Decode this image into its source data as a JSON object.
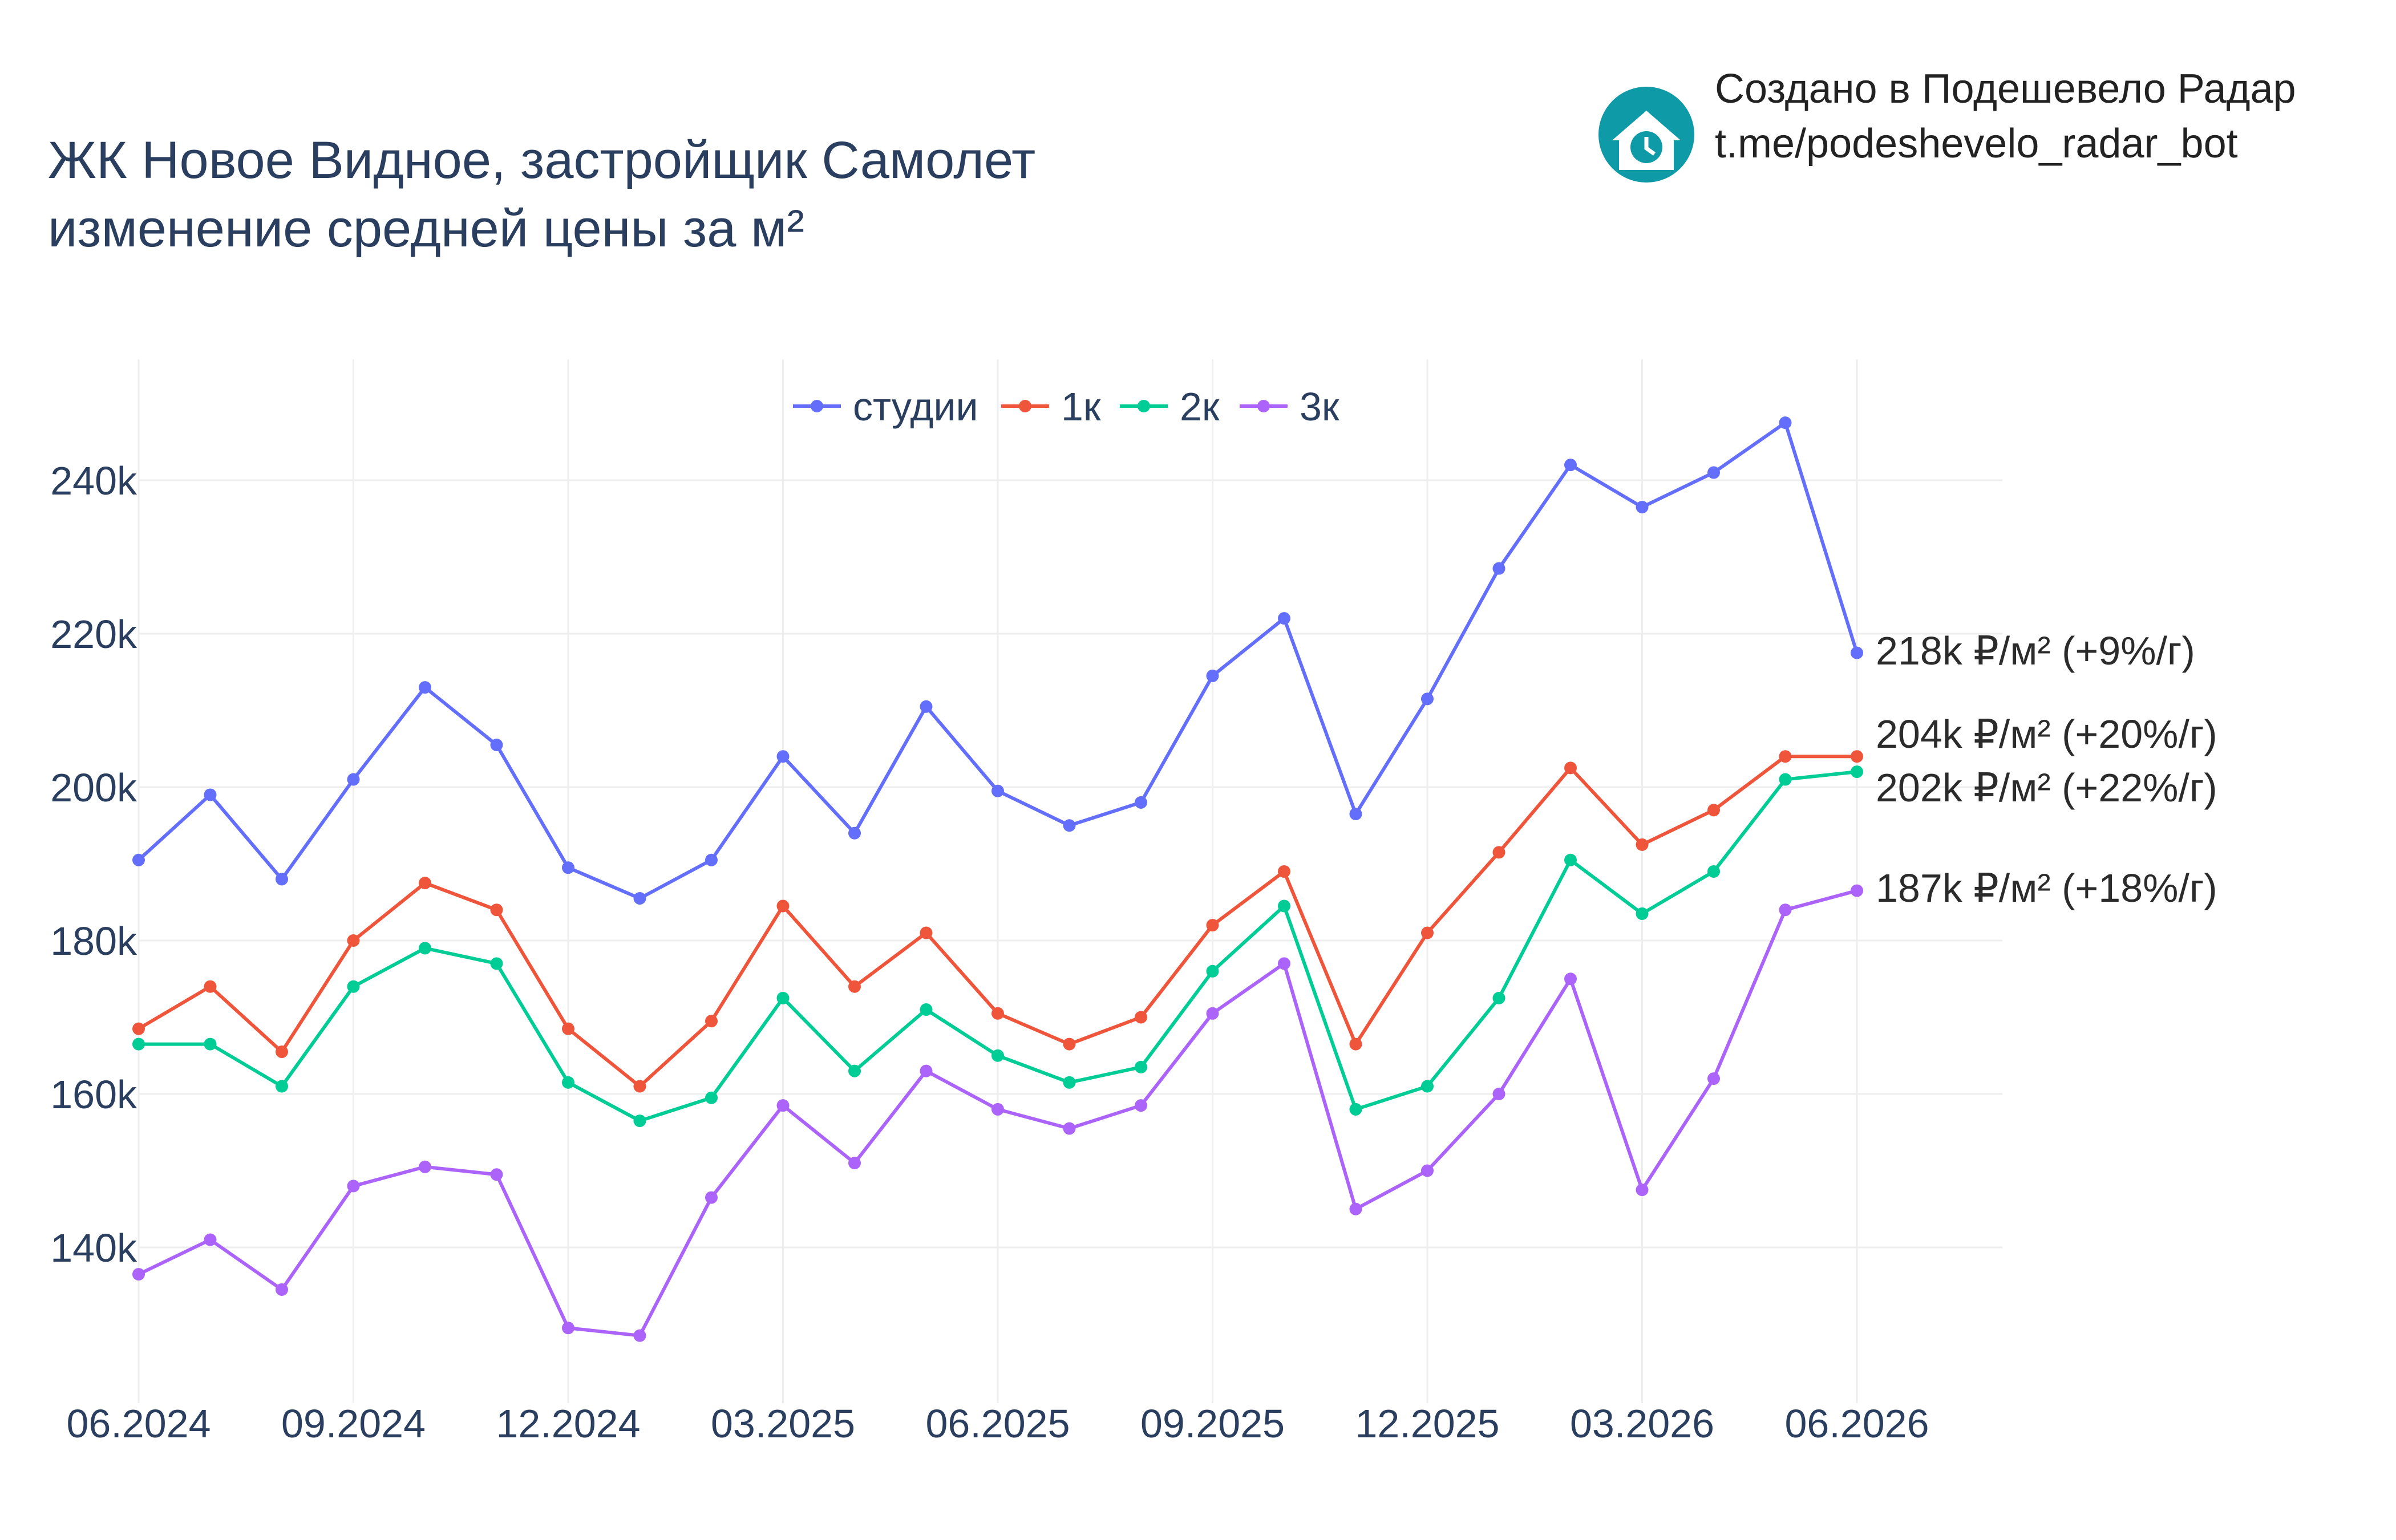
{
  "title_lines": [
    "ЖК Новое Видное, застройщик Самолет",
    "изменение средней цены за м²"
  ],
  "credit": {
    "line1": "Создано в Подешевело Радар",
    "line2": "t.me/podeshevelo_radar_bot",
    "logo_icon": "house-clock-icon",
    "logo_color": "#0e9aa7"
  },
  "chart_data": {
    "type": "line",
    "x": [
      "06.2024",
      "07.2024",
      "08.2024",
      "09.2024",
      "10.2024",
      "11.2024",
      "12.2024",
      "01.2025",
      "02.2025",
      "03.2025",
      "04.2025",
      "05.2025",
      "06.2025",
      "07.2025",
      "08.2025",
      "09.2025",
      "10.2025",
      "11.2025",
      "12.2025",
      "01.2026",
      "02.2026",
      "03.2026",
      "04.2026",
      "05.2026",
      "06.2026"
    ],
    "x_tick_labels": [
      "06.2024",
      "09.2024",
      "12.2024",
      "03.2025",
      "06.2025",
      "09.2025",
      "12.2025",
      "03.2026",
      "06.2026"
    ],
    "y_tick_values": [
      140000,
      160000,
      180000,
      200000,
      220000,
      240000
    ],
    "y_tick_labels": [
      "140k",
      "160k",
      "180k",
      "200k",
      "220k",
      "240k"
    ],
    "ylim": [
      120000,
      255000
    ],
    "grid": true,
    "legend_position": "top-center",
    "series": [
      {
        "name": "студии",
        "color": "#636efa",
        "values": [
          190500,
          199000,
          188000,
          201000,
          213000,
          205500,
          189500,
          185500,
          190500,
          204000,
          194000,
          210500,
          199500,
          195000,
          198000,
          214500,
          222000,
          196500,
          211500,
          228500,
          242000,
          236500,
          241000,
          247500,
          217500
        ],
        "end_label": "218k ₽/м² (+9%/г)"
      },
      {
        "name": "1к",
        "color": "#ef553b",
        "values": [
          168500,
          174000,
          165500,
          180000,
          187500,
          184000,
          168500,
          161000,
          169500,
          184500,
          174000,
          181000,
          170500,
          166500,
          170000,
          182000,
          189000,
          166500,
          181000,
          191500,
          202500,
          192500,
          197000,
          204000,
          204000
        ],
        "end_label": "204k ₽/м² (+20%/г)"
      },
      {
        "name": "2к",
        "color": "#00cc96",
        "values": [
          166500,
          166500,
          161000,
          174000,
          179000,
          177000,
          161500,
          156500,
          159500,
          172500,
          163000,
          171000,
          165000,
          161500,
          163500,
          176000,
          184500,
          158000,
          161000,
          172500,
          190500,
          183500,
          189000,
          201000,
          202000
        ],
        "end_label": "202k ₽/м² (+22%/г)"
      },
      {
        "name": "3к",
        "color": "#ab63fa",
        "values": [
          136500,
          141000,
          134500,
          148000,
          150500,
          149500,
          129500,
          128500,
          146500,
          158500,
          151000,
          163000,
          158000,
          155500,
          158500,
          170500,
          177000,
          145000,
          150000,
          160000,
          175000,
          147500,
          162000,
          184000,
          186500
        ],
        "end_label": "187k ₽/м² (+18%/г)"
      }
    ]
  }
}
